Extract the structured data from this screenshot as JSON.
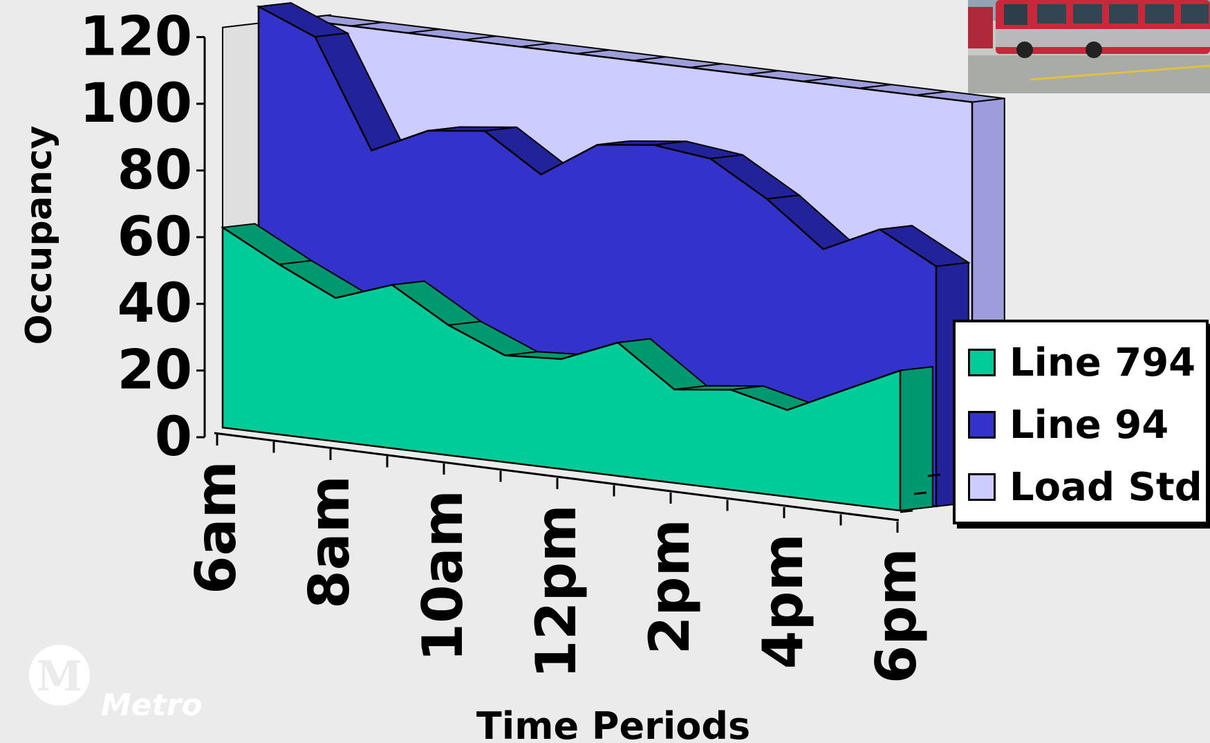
{
  "chart_data": {
    "type": "area",
    "style": "3d",
    "x": [
      "6am",
      "",
      "8am",
      "",
      "10am",
      "",
      "12pm",
      "",
      "2pm",
      "",
      "4pm",
      "",
      "6pm"
    ],
    "tick_labels": [
      "6am",
      "8am",
      "10am",
      "12pm",
      "2pm",
      "4pm",
      "6pm"
    ],
    "series": [
      {
        "name": "Line 794",
        "color": "#00cc99",
        "values": [
          60,
          51,
          43,
          49,
          39,
          32,
          33,
          40,
          28,
          30,
          26,
          34,
          42
        ]
      },
      {
        "name": "Line 94",
        "color": "#3333cc",
        "values": [
          125,
          118,
          86,
          94,
          96,
          85,
          96,
          98,
          96,
          86,
          73,
          81,
          72
        ]
      },
      {
        "name": "Load Std",
        "color": "#ccccff",
        "values": [
          120,
          120,
          120,
          120,
          120,
          120,
          120,
          120,
          120,
          120,
          120,
          120,
          120
        ]
      }
    ],
    "xlabel": "Time Periods",
    "ylabel": "Occupancy",
    "ylim": [
      0,
      120
    ],
    "yticks": [
      "0",
      "20",
      "40",
      "60",
      "80",
      "100",
      "120"
    ],
    "grid": false,
    "legend_position": "right"
  },
  "logo": {
    "text": "Metro",
    "icon": "metro-m-logo-icon"
  },
  "photo": {
    "icon": "bus-photo-icon"
  }
}
